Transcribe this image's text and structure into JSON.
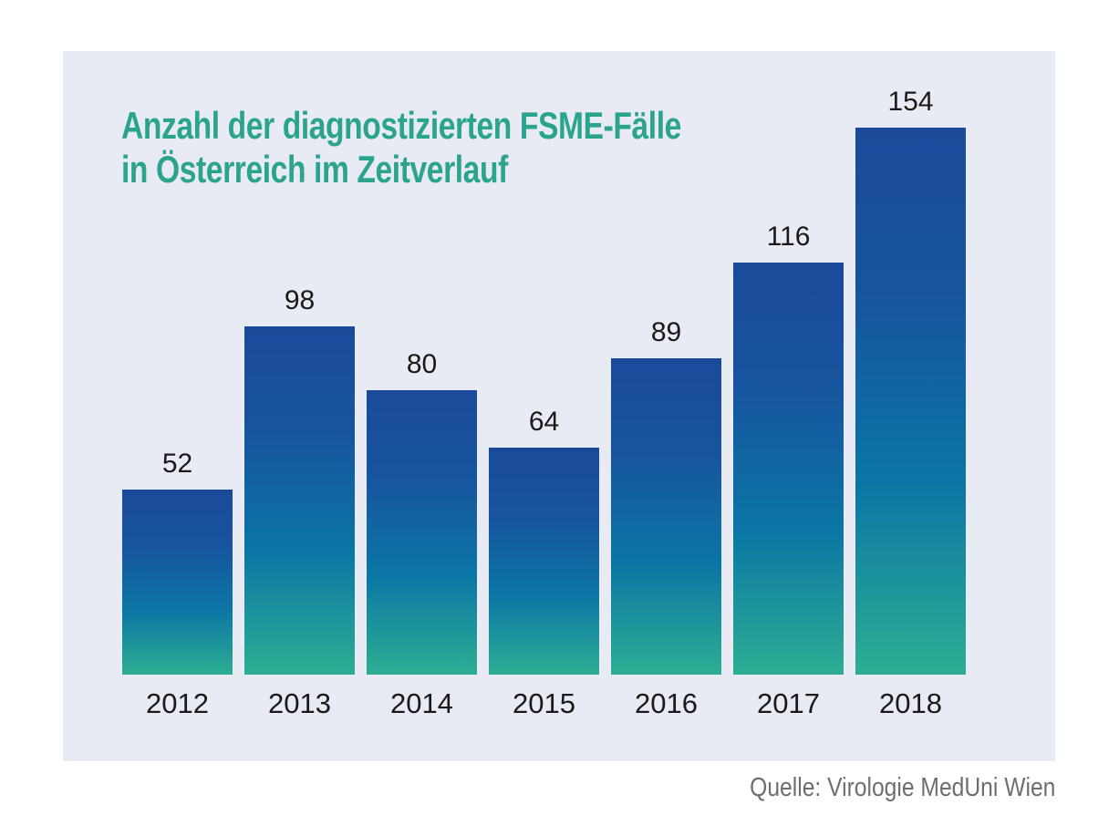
{
  "chart_data": {
    "type": "bar",
    "title": "Anzahl der diagnostizierten FSME-Fälle in Österreich im Zeitverlauf",
    "title_lines": [
      "Anzahl der diagnostizierten FSME-Fälle",
      "in Österreich im Zeitverlauf"
    ],
    "categories": [
      "2012",
      "2013",
      "2014",
      "2015",
      "2016",
      "2017",
      "2018"
    ],
    "values": [
      52,
      98,
      80,
      64,
      89,
      116,
      154
    ],
    "xlabel": "",
    "ylabel": "",
    "ylim": [
      0,
      160
    ],
    "grid": false,
    "legend": "none",
    "value_labels": "above-bars",
    "source": "Quelle: Virologie MedUni Wien",
    "colors": {
      "panel_background": "#E8EAF4",
      "bar_gradient_top": "#1B4A9B",
      "bar_gradient_bottom": "#2DAE93",
      "title": "#2AA58C",
      "label": "#1A1A1A",
      "source": "#6E6E6E"
    }
  }
}
